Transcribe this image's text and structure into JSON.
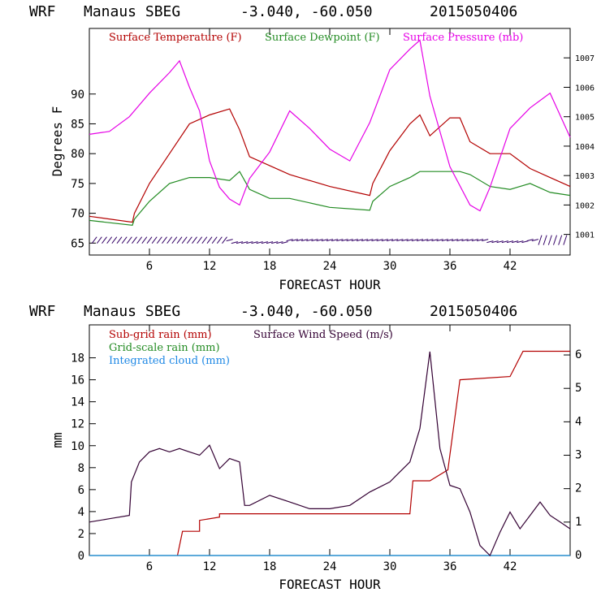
{
  "chart_data": [
    {
      "type": "line",
      "header": {
        "model": "WRF",
        "station": "Manaus SBEG",
        "coords": "-3.040, -60.050",
        "run": "2015050406"
      },
      "xlabel": "FORECAST HOUR",
      "ylabel": "Degrees F",
      "xlim": [
        0,
        48
      ],
      "ylim": [
        63,
        101
      ],
      "y2lim": [
        1000.3,
        1008.0
      ],
      "xticks": [
        6,
        12,
        18,
        24,
        30,
        36,
        42
      ],
      "yticks": [
        65,
        70,
        75,
        80,
        85,
        90
      ],
      "y2ticks": [
        1001,
        1002,
        1003,
        1004,
        1005,
        1006,
        1007
      ],
      "series": [
        {
          "name": "Surface Temperature (F)",
          "color": "#b30000",
          "axis": "left",
          "x": [
            0,
            4.3,
            4.5,
            6,
            8,
            10,
            12,
            14,
            15,
            16,
            18,
            20,
            24,
            28,
            28.3,
            30,
            32,
            33,
            34,
            36,
            37,
            38,
            40,
            42,
            44,
            46,
            48
          ],
          "y": [
            69.5,
            68.5,
            70,
            75,
            80,
            85,
            86.5,
            87.5,
            84,
            79.5,
            78,
            76.5,
            74.5,
            73,
            75,
            80.5,
            85,
            86.5,
            83,
            86,
            86,
            82,
            80,
            80,
            77.5,
            76,
            74.5
          ]
        },
        {
          "name": "Surface Dewpoint (F)",
          "color": "#228b22",
          "axis": "left",
          "x": [
            0,
            4.3,
            4.5,
            6,
            8,
            10,
            12,
            14,
            15,
            16,
            18,
            20,
            24,
            28,
            28.3,
            30,
            32,
            33,
            36,
            37,
            38,
            40,
            42,
            44,
            46,
            48
          ],
          "y": [
            68.8,
            68,
            69,
            72,
            75,
            76,
            76,
            75.5,
            77,
            74,
            72.5,
            72.5,
            71,
            70.5,
            72,
            74.5,
            76,
            77,
            77,
            77,
            76.5,
            74.5,
            74,
            75,
            73.5,
            73
          ]
        },
        {
          "name": "Surface Pressure (mb)",
          "color": "#e600e6",
          "axis": "right",
          "x": [
            0,
            2,
            4,
            6,
            8,
            9,
            10,
            11,
            12,
            13,
            14,
            15,
            16,
            18,
            20,
            22,
            24,
            26,
            28,
            30,
            32,
            33,
            34,
            36,
            38,
            39,
            40,
            42,
            44,
            46,
            48
          ],
          "y": [
            1004.4,
            1004.5,
            1005.0,
            1005.8,
            1006.5,
            1006.9,
            1006.0,
            1005.2,
            1003.5,
            1002.6,
            1002.2,
            1002.0,
            1002.9,
            1003.8,
            1005.2,
            1004.6,
            1003.9,
            1003.5,
            1004.8,
            1006.6,
            1007.3,
            1007.6,
            1005.7,
            1003.3,
            1002.0,
            1001.8,
            1002.6,
            1004.6,
            1005.3,
            1005.8,
            1004.3
          ]
        }
      ],
      "wind_barbs": {
        "y": 65.5,
        "color": "#330066"
      }
    },
    {
      "type": "line",
      "header": {
        "model": "WRF",
        "station": "Manaus SBEG",
        "coords": "-3.040, -60.050",
        "run": "2015050406"
      },
      "xlabel": "FORECAST HOUR",
      "ylabel": "mm",
      "xlim": [
        0,
        48
      ],
      "ylim": [
        0,
        21
      ],
      "y2lim": [
        0,
        6.9
      ],
      "xticks": [
        6,
        12,
        18,
        24,
        30,
        36,
        42
      ],
      "yticks": [
        0,
        2,
        4,
        6,
        8,
        10,
        12,
        14,
        16,
        18
      ],
      "y2ticks": [
        0,
        1,
        2,
        3,
        4,
        5,
        6
      ],
      "series": [
        {
          "name": "Sub-grid rain (mm)",
          "color": "#b30000",
          "axis": "left",
          "x": [
            8.8,
            9.3,
            9.3,
            11,
            11,
            13,
            13,
            32,
            32.3,
            34,
            35.8,
            37,
            42,
            43.3,
            48
          ],
          "y": [
            0,
            2.2,
            2.2,
            2.2,
            3.2,
            3.5,
            3.8,
            3.8,
            6.8,
            6.8,
            7.8,
            16,
            16.3,
            18.6,
            18.6
          ]
        },
        {
          "name": "Grid-scale rain (mm)",
          "color": "#228b22",
          "axis": "left",
          "x": [
            0,
            48
          ],
          "y": [
            0,
            0
          ]
        },
        {
          "name": "Integrated cloud (mm)",
          "color": "#1e88e5",
          "axis": "left",
          "x": [
            0,
            48
          ],
          "y": [
            0,
            0
          ]
        },
        {
          "name": "Surface Wind Speed (m/s)",
          "color": "#330033",
          "axis": "right",
          "x": [
            0,
            2,
            4,
            4.2,
            5,
            6,
            7,
            8,
            9,
            10,
            11,
            12,
            13,
            14,
            15,
            15.5,
            16,
            18,
            20,
            22,
            24,
            26,
            28,
            30,
            31,
            32,
            33,
            34,
            35,
            36,
            37,
            38,
            39,
            40,
            41,
            42,
            43,
            44,
            45,
            46,
            47,
            48
          ],
          "y": [
            1.0,
            1.1,
            1.2,
            2.2,
            2.8,
            3.1,
            3.2,
            3.1,
            3.2,
            3.1,
            3.0,
            3.3,
            2.6,
            2.9,
            2.8,
            1.5,
            1.5,
            1.8,
            1.6,
            1.4,
            1.4,
            1.5,
            1.9,
            2.2,
            2.5,
            2.8,
            3.8,
            6.1,
            3.2,
            2.1,
            2.0,
            1.3,
            0.3,
            0.0,
            0.7,
            1.3,
            0.8,
            1.2,
            1.6,
            1.2,
            1.0,
            0.8
          ]
        }
      ]
    }
  ]
}
